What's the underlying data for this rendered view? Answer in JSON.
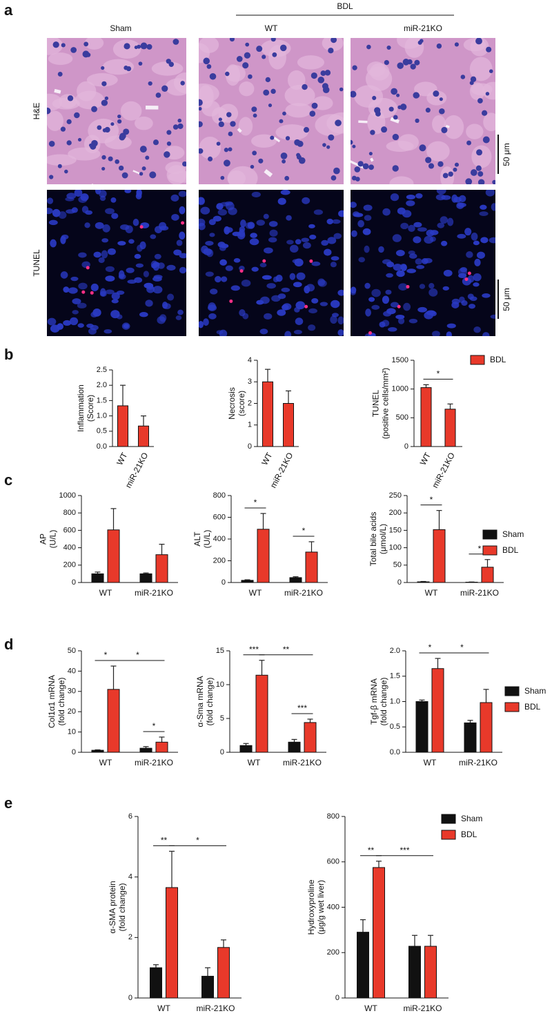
{
  "panel_a": {
    "label": "a",
    "group": "BDL",
    "columns": [
      "Sham",
      "WT",
      "miR-21KO"
    ],
    "rows": [
      "H&E",
      "TUNEL"
    ],
    "scale_bars": [
      "50 μm",
      "50 μm"
    ]
  },
  "panel_labels": [
    "b",
    "c",
    "d",
    "e"
  ],
  "chart_data": [
    {
      "type": "bar",
      "ylabel": [
        "Inflammation",
        "(Score)"
      ],
      "categories": [
        "WT",
        "miR-21KO"
      ],
      "series": [
        {
          "color": "#e8392a",
          "values": [
            1.33,
            0.67
          ],
          "errors": [
            0.67,
            0.33
          ]
        }
      ],
      "ylim": [
        0,
        2.5
      ],
      "yticks": [
        {
          "value": 0,
          "label": "0.0"
        },
        0.5,
        {
          "value": 1,
          "label": "1.0"
        },
        1.5,
        {
          "value": 2,
          "label": "2.0"
        },
        2.5
      ]
    },
    {
      "type": "bar",
      "ylabel": [
        "Necrosis",
        "(score)"
      ],
      "categories": [
        "WT",
        "miR-21KO"
      ],
      "series": [
        {
          "color": "#e8392a",
          "values": [
            3,
            2
          ],
          "errors": [
            0.58,
            0.58
          ]
        }
      ],
      "ylim": [
        0,
        4
      ],
      "yticks": [
        0,
        1,
        2,
        3,
        4
      ]
    },
    {
      "type": "bar",
      "ylabel": [
        "TUNEL",
        "(positive cells/mm²)"
      ],
      "categories": [
        "WT",
        "miR-21KO"
      ],
      "series": [
        {
          "name": "BDL",
          "color": "#e8392a",
          "values": [
            1025,
            650
          ],
          "errors": [
            50,
            90
          ]
        }
      ],
      "ylim": [
        0,
        1500
      ],
      "yticks": [
        0,
        500,
        1000,
        1500
      ],
      "legend": "right",
      "annotations": [
        {
          "text": "*",
          "between": [
            [
              0,
              0
            ],
            [
              1,
              0
            ]
          ]
        }
      ]
    },
    {
      "type": "bar",
      "ylabel": [
        "AP",
        "(U/L)"
      ],
      "categories": [
        "WT",
        "miR-21KO"
      ],
      "series": [
        {
          "color": "#111111",
          "values": [
            100,
            100
          ],
          "errors": [
            20,
            10
          ]
        },
        {
          "color": "#e8392a",
          "values": [
            605,
            320
          ],
          "errors": [
            245,
            120
          ]
        }
      ],
      "ylim": [
        0,
        1000
      ],
      "yticks": [
        0,
        200,
        400,
        600,
        800,
        1000
      ]
    },
    {
      "type": "bar",
      "ylabel": [
        "ALT",
        "(U/L)"
      ],
      "categories": [
        "WT",
        "miR-21KO"
      ],
      "series": [
        {
          "color": "#111111",
          "values": [
            20,
            45
          ],
          "errors": [
            5,
            8
          ]
        },
        {
          "color": "#e8392a",
          "values": [
            490,
            280
          ],
          "errors": [
            145,
            95
          ]
        }
      ],
      "ylim": [
        0,
        800
      ],
      "yticks": [
        0,
        200,
        400,
        600,
        800
      ],
      "annotations": [
        {
          "text": "*",
          "between": [
            [
              0,
              0
            ],
            [
              0,
              1
            ]
          ]
        },
        {
          "text": "*",
          "between": [
            [
              1,
              0
            ],
            [
              1,
              1
            ]
          ]
        }
      ]
    },
    {
      "type": "bar",
      "ylabel": [
        "Total bile acids",
        "(μmol/L)"
      ],
      "categories": [
        "WT",
        "miR-21KO"
      ],
      "series": [
        {
          "name": "Sham",
          "color": "#111111",
          "values": [
            2,
            1
          ],
          "errors": [
            1,
            0.5
          ]
        },
        {
          "name": "BDL",
          "color": "#e8392a",
          "values": [
            152,
            44
          ],
          "errors": [
            55,
            22
          ]
        }
      ],
      "ylim": [
        0,
        250
      ],
      "yticks": [
        0,
        50,
        100,
        150,
        200,
        250
      ],
      "legend": "right",
      "annotations": [
        {
          "text": "*",
          "between": [
            [
              0,
              0
            ],
            [
              0,
              1
            ]
          ]
        },
        {
          "text": "*",
          "between": [
            [
              1,
              0
            ],
            [
              1,
              1
            ]
          ]
        }
      ]
    },
    {
      "type": "bar",
      "ylabel": [
        "Col1α1 mRNA",
        "(fold change)"
      ],
      "categories": [
        "WT",
        "miR-21KO"
      ],
      "series": [
        {
          "color": "#111111",
          "values": [
            1,
            2
          ],
          "errors": [
            0.2,
            0.8
          ]
        },
        {
          "color": "#e8392a",
          "values": [
            31,
            5
          ],
          "errors": [
            11.5,
            2.5
          ]
        }
      ],
      "ylim": [
        0,
        50
      ],
      "yticks": [
        0,
        10,
        20,
        30,
        40,
        50
      ],
      "annotations": [
        {
          "text": "*",
          "between": [
            [
              0,
              0
            ],
            [
              0,
              1
            ]
          ]
        },
        {
          "text": "*",
          "between": [
            [
              0,
              1
            ],
            [
              1,
              1
            ]
          ]
        },
        {
          "text": "*",
          "between": [
            [
              1,
              0
            ],
            [
              1,
              1
            ]
          ]
        }
      ]
    },
    {
      "type": "bar",
      "ylabel": [
        "α-Sma mRNA",
        "(fold change)"
      ],
      "categories": [
        "WT",
        "miR-21KO"
      ],
      "series": [
        {
          "color": "#111111",
          "values": [
            1,
            1.5
          ],
          "errors": [
            0.3,
            0.4
          ]
        },
        {
          "color": "#e8392a",
          "values": [
            11.4,
            4.4
          ],
          "errors": [
            2.2,
            0.5
          ]
        }
      ],
      "ylim": [
        0,
        15
      ],
      "yticks": [
        0,
        5,
        10,
        15
      ],
      "annotations": [
        {
          "text": "***",
          "between": [
            [
              0,
              0
            ],
            [
              0,
              1
            ]
          ]
        },
        {
          "text": "**",
          "between": [
            [
              0,
              1
            ],
            [
              1,
              1
            ]
          ]
        },
        {
          "text": "***",
          "between": [
            [
              1,
              0
            ],
            [
              1,
              1
            ]
          ]
        }
      ]
    },
    {
      "type": "bar",
      "ylabel": [
        "Tgf-β mRNA",
        "(fold change)"
      ],
      "categories": [
        "WT",
        "miR-21KO"
      ],
      "series": [
        {
          "name": "Sham",
          "color": "#111111",
          "values": [
            1.0,
            0.58
          ],
          "errors": [
            0.03,
            0.05
          ]
        },
        {
          "name": "BDL",
          "color": "#e8392a",
          "values": [
            1.65,
            0.98
          ],
          "errors": [
            0.2,
            0.26
          ]
        }
      ],
      "ylim": [
        0,
        2
      ],
      "yticks": [
        {
          "value": 0,
          "label": "0.0"
        },
        0.5,
        {
          "value": 1,
          "label": "1.0"
        },
        1.5,
        {
          "value": 2,
          "label": "2.0"
        }
      ],
      "legend": "right",
      "annotations": [
        {
          "text": "*",
          "between": [
            [
              0,
              0
            ],
            [
              0,
              1
            ]
          ]
        },
        {
          "text": "*",
          "between": [
            [
              0,
              1
            ],
            [
              1,
              1
            ]
          ]
        }
      ]
    },
    {
      "type": "bar",
      "ylabel": [
        "α-SMA protein",
        "(fold change)"
      ],
      "categories": [
        "WT",
        "miR-21KO"
      ],
      "series": [
        {
          "color": "#111111",
          "values": [
            1.0,
            0.72
          ],
          "errors": [
            0.1,
            0.28
          ]
        },
        {
          "color": "#e8392a",
          "values": [
            3.65,
            1.67
          ],
          "errors": [
            1.2,
            0.25
          ]
        }
      ],
      "ylim": [
        0,
        6
      ],
      "yticks": [
        0,
        2,
        4,
        6
      ],
      "annotations": [
        {
          "text": "**",
          "between": [
            [
              0,
              0
            ],
            [
              0,
              1
            ]
          ]
        },
        {
          "text": "*",
          "between": [
            [
              0,
              1
            ],
            [
              1,
              1
            ]
          ]
        }
      ]
    },
    {
      "type": "bar",
      "ylabel": [
        "Hydroxyproline",
        "(μg/g wet liver)"
      ],
      "categories": [
        "WT",
        "miR-21KO"
      ],
      "series": [
        {
          "name": "Sham",
          "color": "#111111",
          "values": [
            290,
            228
          ],
          "errors": [
            55,
            48
          ]
        },
        {
          "name": "BDL",
          "color": "#e8392a",
          "values": [
            575,
            228
          ],
          "errors": [
            28,
            48
          ]
        }
      ],
      "ylim": [
        0,
        800
      ],
      "yticks": [
        0,
        200,
        400,
        600,
        800
      ],
      "legend": "right",
      "annotations": [
        {
          "text": "**",
          "between": [
            [
              0,
              0
            ],
            [
              0,
              1
            ]
          ]
        },
        {
          "text": "***",
          "between": [
            [
              0,
              1
            ],
            [
              1,
              1
            ]
          ]
        }
      ]
    }
  ]
}
